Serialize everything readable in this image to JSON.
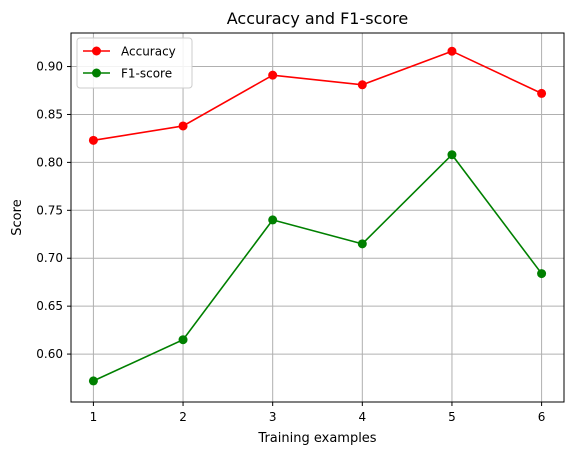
{
  "chart_data": {
    "type": "line",
    "title": "Accuracy and F1-score",
    "xlabel": "Training examples",
    "ylabel": "Score",
    "x": [
      1,
      2,
      3,
      4,
      5,
      6
    ],
    "xticks": [
      1,
      2,
      3,
      4,
      5,
      6
    ],
    "xtick_labels": [
      "1",
      "2",
      "3",
      "4",
      "5",
      "6"
    ],
    "xlim": [
      0.75,
      6.25
    ],
    "yticks": [
      0.6,
      0.65,
      0.7,
      0.75,
      0.8,
      0.85,
      0.9
    ],
    "ytick_labels": [
      "0.60",
      "0.65",
      "0.70",
      "0.75",
      "0.80",
      "0.85",
      "0.90"
    ],
    "ylim": [
      0.55,
      0.935
    ],
    "grid": true,
    "legend_position": "top-left",
    "series": [
      {
        "name": "Accuracy",
        "color": "#ff0000",
        "marker": "circle",
        "values": [
          0.823,
          0.838,
          0.891,
          0.881,
          0.916,
          0.872
        ]
      },
      {
        "name": "F1-score",
        "color": "#008000",
        "marker": "circle",
        "values": [
          0.572,
          0.615,
          0.74,
          0.715,
          0.808,
          0.684
        ]
      }
    ]
  }
}
